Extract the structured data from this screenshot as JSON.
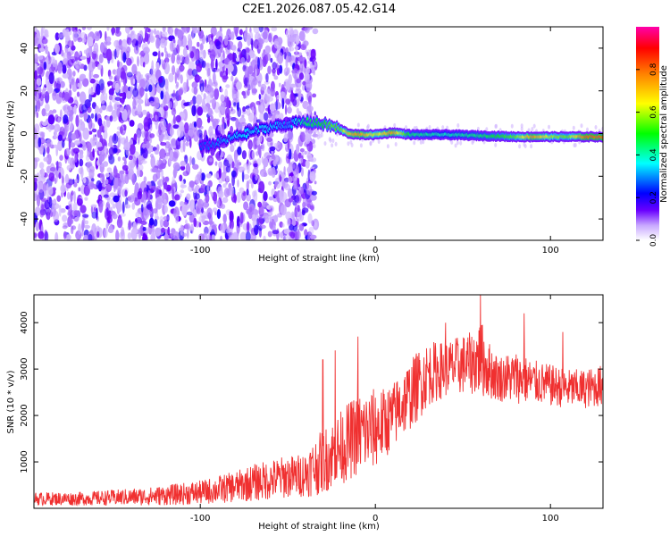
{
  "title": "C2E1.2026.087.05.42.G14",
  "chart_data": [
    {
      "type": "heatmap",
      "xlabel": "Height of straight line (km)",
      "ylabel": "Frequency (Hz)",
      "xlim": [
        -195,
        130
      ],
      "ylim": [
        -50,
        50
      ],
      "xticks": [
        -100,
        0,
        100
      ],
      "xtick_labels": [
        "-100",
        "0",
        "100"
      ],
      "yticks": [
        -40,
        -20,
        0,
        20,
        40
      ],
      "ytick_labels": [
        "-40",
        "-20",
        "0",
        "20",
        "40"
      ],
      "colorbar": {
        "label": "Normalized spectral amplitude",
        "range": [
          0,
          1
        ],
        "ticks": [
          0.0,
          0.2,
          0.4,
          0.6,
          0.8
        ],
        "tick_labels": [
          "0.0",
          "0.2",
          "0.4",
          "0.6",
          "0.8"
        ],
        "colormap": [
          "#ffffff",
          "#6a00ff",
          "#0000ff",
          "#00ffff",
          "#00ff00",
          "#ffff00",
          "#ff8000",
          "#ff0000",
          "#ff00ff"
        ]
      },
      "signal_track": [
        {
          "x": -100,
          "f": -6.5,
          "a": 0.25
        },
        {
          "x": -90,
          "f": -4.5,
          "a": 0.3
        },
        {
          "x": -80,
          "f": -1.5,
          "a": 0.35
        },
        {
          "x": -70,
          "f": 1.0,
          "a": 0.35
        },
        {
          "x": -60,
          "f": 3.0,
          "a": 0.35
        },
        {
          "x": -50,
          "f": 4.5,
          "a": 0.3
        },
        {
          "x": -40,
          "f": 5.5,
          "a": 0.45
        },
        {
          "x": -30,
          "f": 4.5,
          "a": 0.5
        },
        {
          "x": -25,
          "f": 3.5,
          "a": 0.55
        },
        {
          "x": -20,
          "f": 2.0,
          "a": 0.55
        },
        {
          "x": -15,
          "f": 0.0,
          "a": 0.7
        },
        {
          "x": -10,
          "f": -0.5,
          "a": 0.75
        },
        {
          "x": -5,
          "f": -0.5,
          "a": 0.7
        },
        {
          "x": 0,
          "f": -0.5,
          "a": 0.6
        },
        {
          "x": 10,
          "f": 0.5,
          "a": 0.75
        },
        {
          "x": 20,
          "f": -0.5,
          "a": 0.45
        },
        {
          "x": 40,
          "f": -0.5,
          "a": 0.4
        },
        {
          "x": 60,
          "f": -1.0,
          "a": 0.45
        },
        {
          "x": 80,
          "f": -1.5,
          "a": 0.55
        },
        {
          "x": 90,
          "f": -1.5,
          "a": 0.75
        },
        {
          "x": 100,
          "f": -1.5,
          "a": 0.6
        },
        {
          "x": 110,
          "f": -1.5,
          "a": 0.55
        },
        {
          "x": 120,
          "f": -1.5,
          "a": 0.8
        },
        {
          "x": 130,
          "f": -1.5,
          "a": 0.8
        }
      ],
      "noise_extent_x": [
        -195,
        -40
      ]
    },
    {
      "type": "line",
      "xlabel": "Height of straight line (km)",
      "ylabel": "SNR (10 * v/v)",
      "xlim": [
        -195,
        130
      ],
      "ylim": [
        0,
        4600
      ],
      "xticks": [
        -100,
        0,
        100
      ],
      "xtick_labels": [
        "-100",
        "0",
        "100"
      ],
      "yticks": [
        1000,
        2000,
        3000,
        4000
      ],
      "ytick_labels": [
        "1000",
        "2000",
        "3000",
        "4000"
      ],
      "color": "#f03030",
      "envelope": {
        "x": [
          -195,
          -170,
          -150,
          -130,
          -110,
          -100,
          -90,
          -80,
          -70,
          -60,
          -50,
          -45,
          -40,
          -35,
          -30,
          -25,
          -20,
          -15,
          -10,
          -5,
          0,
          5,
          10,
          15,
          20,
          25,
          30,
          40,
          50,
          55,
          60,
          65,
          70,
          80,
          90,
          100,
          110,
          120,
          130
        ],
        "low": [
          60,
          60,
          60,
          60,
          70,
          80,
          100,
          130,
          150,
          180,
          220,
          240,
          240,
          260,
          320,
          400,
          500,
          600,
          700,
          750,
          850,
          1050,
          1250,
          1500,
          1700,
          1900,
          2200,
          2400,
          2450,
          2450,
          2400,
          2350,
          2300,
          2250,
          2250,
          2200,
          2150,
          2150,
          2200
        ],
        "high": [
          350,
          350,
          400,
          450,
          550,
          600,
          700,
          800,
          950,
          1050,
          1150,
          1150,
          1250,
          1500,
          1700,
          1900,
          2100,
          2300,
          2500,
          2550,
          2600,
          2600,
          2700,
          3000,
          3200,
          3450,
          3600,
          3600,
          3750,
          3800,
          4100,
          3600,
          3300,
          3400,
          3200,
          3100,
          3000,
          3000,
          3100
        ]
      },
      "peaks": [
        {
          "x": -30,
          "y": 3200
        },
        {
          "x": -23,
          "y": 3400
        },
        {
          "x": -10,
          "y": 3700
        },
        {
          "x": 40,
          "y": 4000
        },
        {
          "x": 60,
          "y": 4600
        },
        {
          "x": 85,
          "y": 4200
        },
        {
          "x": 107,
          "y": 3800
        }
      ]
    }
  ]
}
